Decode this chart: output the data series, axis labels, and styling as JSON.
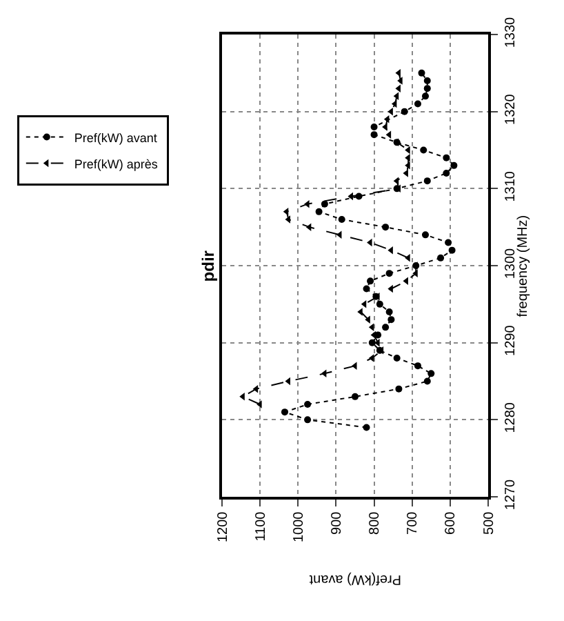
{
  "chart_data": {
    "type": "line",
    "orientation": "horizontal",
    "title": "pdir",
    "xlabel": "Pref(kW) avant",
    "ylabel": "frequency (MHz)",
    "xlim": [
      1200,
      500
    ],
    "xticks": [
      1200,
      1100,
      1000,
      900,
      800,
      700,
      600,
      500
    ],
    "ylim": [
      1270,
      1330
    ],
    "yticks": [
      1270,
      1280,
      1290,
      1300,
      1310,
      1320,
      1330
    ],
    "grid": true,
    "legend": "left",
    "series": [
      {
        "name": "Pref(kW) avant",
        "color": "#000000",
        "marker": "circle",
        "line_style": "dotted",
        "x": [
          1279,
          1280,
          1281,
          1282,
          1283,
          1284,
          1285,
          1286,
          1287,
          1288,
          1289,
          1290,
          1291,
          1292,
          1293,
          1294,
          1295,
          1296,
          1297,
          1298,
          1299,
          1300,
          1301,
          1302,
          1303,
          1304,
          1305,
          1306,
          1307,
          1308,
          1309,
          1310,
          1311,
          1312,
          1313,
          1314,
          1315,
          1316,
          1317,
          1318,
          1320,
          1321,
          1322,
          1323,
          1324,
          1325
        ],
        "values": [
          820,
          975,
          1035,
          975,
          850,
          735,
          660,
          650,
          685,
          740,
          785,
          805,
          790,
          770,
          755,
          760,
          785,
          795,
          820,
          810,
          760,
          690,
          625,
          595,
          605,
          665,
          770,
          885,
          945,
          930,
          840,
          740,
          660,
          610,
          590,
          610,
          670,
          740,
          800,
          800,
          720,
          685,
          665,
          660,
          660,
          675
        ]
      },
      {
        "name": "Pref(kW) après",
        "color": "#000000",
        "marker": "triangle",
        "line_style": "dashed",
        "x": [
          1282,
          1283,
          1284,
          1285,
          1286,
          1287,
          1288,
          1289,
          1290,
          1291,
          1292,
          1293,
          1294,
          1295,
          1296,
          1297,
          1298,
          1299,
          1300,
          1301,
          1302,
          1303,
          1304,
          1305,
          1306,
          1307,
          1308,
          1309,
          1310,
          1311,
          1312,
          1313,
          1314,
          1315,
          1316,
          1317,
          1318,
          1319,
          1320,
          1321,
          1322,
          1323,
          1324,
          1325
        ],
        "values": [
          1100,
          1145,
          1110,
          1025,
          930,
          850,
          805,
          780,
          790,
          800,
          805,
          815,
          835,
          825,
          790,
          755,
          715,
          690,
          690,
          710,
          755,
          810,
          890,
          970,
          1025,
          1030,
          975,
          860,
          735,
          740,
          715,
          710,
          710,
          710,
          740,
          760,
          770,
          765,
          755,
          745,
          740,
          735,
          730,
          735
        ]
      }
    ]
  }
}
